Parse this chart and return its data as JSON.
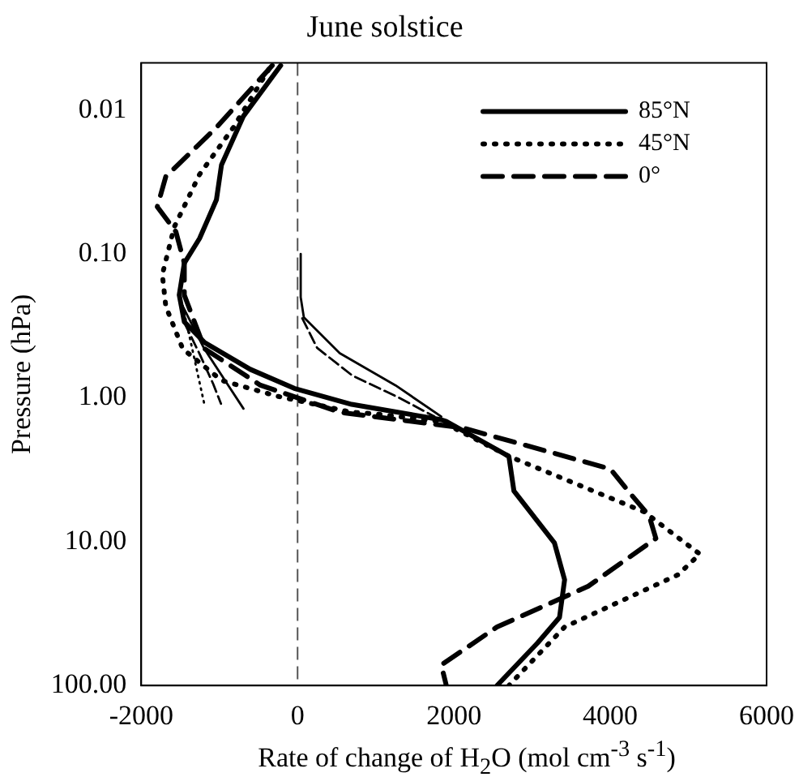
{
  "chart_data": {
    "type": "line",
    "title": "June solstice",
    "xlabel": "Rate of change of H$_{2}$O (mol cm$^{-3}$ s$^{-1}$)",
    "ylabel": "Pressure (hPa)",
    "xlim": [
      -2000,
      6000
    ],
    "xticks": [
      -2000,
      0,
      2000,
      4000,
      6000
    ],
    "ylim": [
      100,
      0.0047
    ],
    "yticks": [
      {
        "value": 0.01,
        "label": "0.01"
      },
      {
        "value": 0.1,
        "label": "0.10"
      },
      {
        "value": 1,
        "label": "1.00"
      },
      {
        "value": 10,
        "label": "10.00"
      },
      {
        "value": 100,
        "label": "100.00"
      }
    ],
    "log": "y",
    "grid": false,
    "legend": "top right",
    "marker": "none",
    "ref_lines": [
      {
        "axis": "x",
        "value": 0,
        "color": "#555555",
        "line_style": "dashed"
      }
    ],
    "series": [
      {
        "name": "85°N",
        "color": "#000000",
        "line_style": "solid",
        "x": [
          -216,
          -692,
          -973,
          -1038,
          -1254,
          -1449,
          -1514,
          -1449,
          -1189,
          -605,
          -43,
          692,
          1838,
          1903,
          2703,
          2768,
          3286,
          3416,
          3351,
          3070,
          2551
        ],
        "values": [
          0.0049,
          0.011,
          0.024,
          0.042,
          0.078,
          0.116,
          0.193,
          0.297,
          0.413,
          0.634,
          0.86,
          1.11,
          1.42,
          1.46,
          2.55,
          4.45,
          10.2,
          18.4,
          33.6,
          50.6,
          100
        ]
      },
      {
        "name": "45°N",
        "color": "#000000",
        "line_style": "dotted",
        "x": [
          -368,
          -822,
          -1254,
          -1578,
          -1730,
          -1686,
          -1470,
          -973,
          -259,
          692,
          973,
          1838,
          2703,
          4432,
          5146,
          4865,
          3416,
          2703
        ],
        "values": [
          0.0052,
          0.0132,
          0.028,
          0.065,
          0.139,
          0.231,
          0.456,
          0.757,
          0.975,
          1.26,
          1.29,
          1.46,
          2.55,
          6.2,
          12.2,
          17,
          39.2,
          100
        ]
      },
      {
        "name": "0°",
        "color": "#000000",
        "line_style": "dashed",
        "x": [
          -324,
          -1038,
          -1686,
          -1795,
          -1557,
          -1449,
          -1449,
          -1189,
          -476,
          540,
          2119,
          4000,
          4281,
          4497,
          4584,
          3719,
          2551,
          1838,
          1903
        ],
        "values": [
          0.0049,
          0.0132,
          0.029,
          0.047,
          0.07,
          0.116,
          0.193,
          0.456,
          0.817,
          1.26,
          1.62,
          3.12,
          4.8,
          6.6,
          9.5,
          20.4,
          39.2,
          72,
          100
        ]
      },
      {
        "color": "#000000",
        "line_style": "solid",
        "x": [
          -1470,
          -1200,
          -900,
          -692,
          null,
          40,
          40,
          80,
          540,
          1254,
          1838
        ],
        "values": [
          0.23,
          0.45,
          0.8,
          1.19,
          null,
          0.1,
          0.2,
          0.276,
          0.49,
          0.82,
          1.35
        ]
      },
      {
        "color": "#000000",
        "line_style": "dotted",
        "x": [
          -1470,
          -1350,
          -1250,
          -1189
        ],
        "values": [
          0.23,
          0.45,
          0.8,
          1.13
        ]
      },
      {
        "color": "#000000",
        "line_style": "dashed",
        "x": [
          -1450,
          -1250,
          -1080,
          -980,
          null,
          60,
          250,
          700,
          1300,
          1750
        ],
        "values": [
          0.3,
          0.5,
          0.8,
          1.1,
          null,
          0.28,
          0.45,
          0.7,
          1.0,
          1.35
        ]
      }
    ]
  }
}
